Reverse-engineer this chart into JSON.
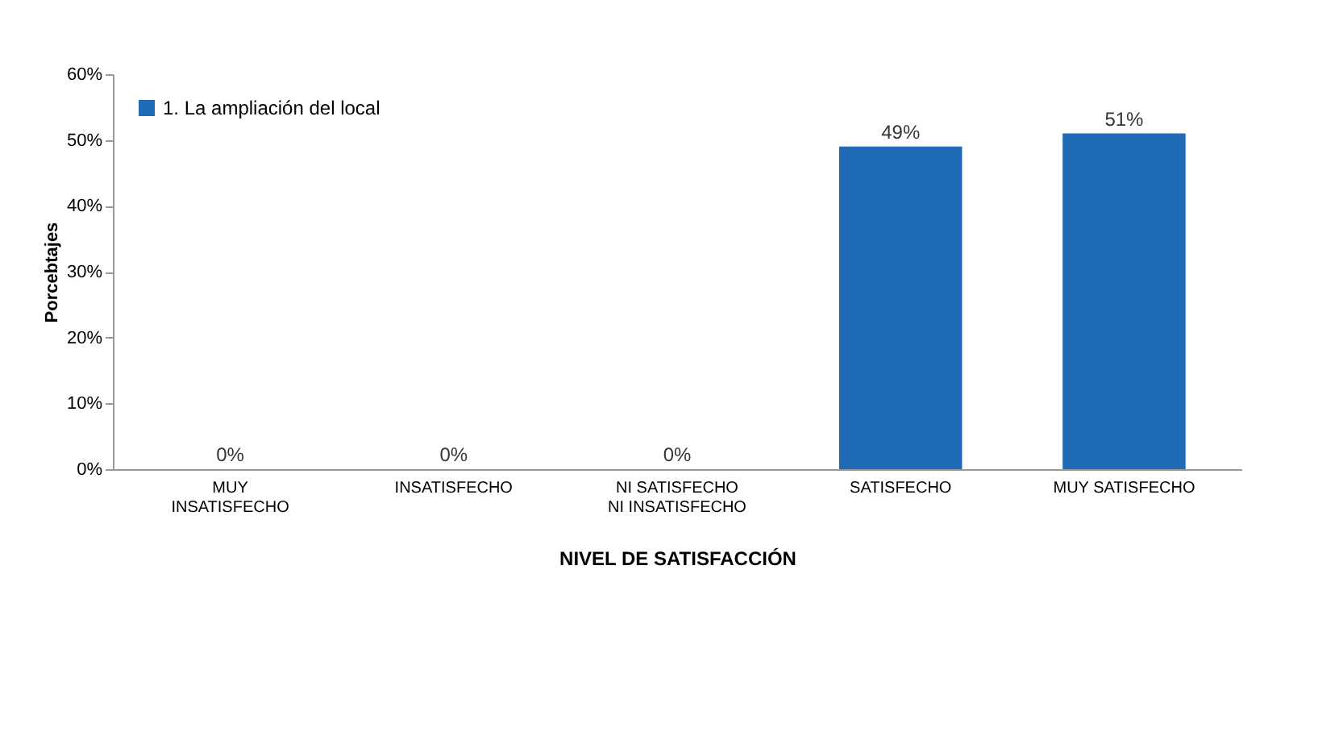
{
  "chart_data": {
    "type": "bar",
    "xlabel": "NIVEL DE SATISFACCIÓN",
    "ylabel": "Porcebtajes",
    "categories": [
      "MUY\nINSATISFECHO",
      "INSATISFECHO",
      "NI SATISFECHO\nNI INSATISFECHO",
      "SATISFECHO",
      "MUY SATISFECHO"
    ],
    "series": [
      {
        "name": "1. La ampliación del local",
        "color": "#1f6bb5",
        "values": [
          0,
          0,
          0,
          49,
          51
        ],
        "value_labels": [
          "0%",
          "0%",
          "0%",
          "49%",
          "51%"
        ]
      }
    ],
    "ylim": [
      0,
      60
    ],
    "yticks": [
      {
        "value": 0,
        "label": "0%"
      },
      {
        "value": 10,
        "label": "10%"
      },
      {
        "value": 20,
        "label": "20%"
      },
      {
        "value": 30,
        "label": "30%"
      },
      {
        "value": 40,
        "label": "40%"
      },
      {
        "value": 50,
        "label": "50%"
      },
      {
        "value": 60,
        "label": "60%"
      }
    ],
    "legend": "top left",
    "grid": false
  }
}
